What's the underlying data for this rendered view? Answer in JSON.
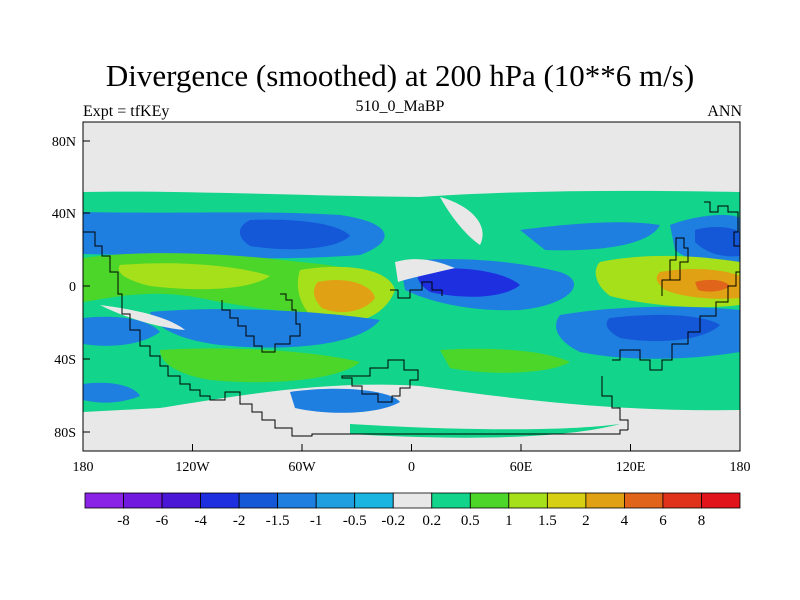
{
  "title": "Divergence (smoothed) at 200 hPa (10**6 m/s)",
  "left_label": "Expt = tfKEy",
  "center_label": "510_0_MaBP",
  "right_label": "ANN",
  "lat_ticks": [
    "80N",
    "40N",
    "0",
    "40S",
    "80S"
  ],
  "lon_ticks": [
    "180",
    "120W",
    "60W",
    "0",
    "60E",
    "120E",
    "180"
  ],
  "colorbar": {
    "labels": [
      "-8",
      "-6",
      "-4",
      "-2",
      "-1.5",
      "-1",
      "-0.5",
      "-0.2",
      "0.2",
      "0.5",
      "1",
      "1.5",
      "2",
      "4",
      "6",
      "8"
    ],
    "colors": [
      "#8b23e6",
      "#7219e0",
      "#4b17d6",
      "#1e2fe0",
      "#1458d8",
      "#1e7fe0",
      "#1f9fe0",
      "#1ab5e0",
      "#e8e8e8",
      "#12d48a",
      "#4cd62a",
      "#a6e01a",
      "#d6cf14",
      "#e0a214",
      "#e0641a",
      "#e0321a",
      "#e0141a"
    ]
  },
  "chart_data": {
    "type": "heatmap",
    "title": "Divergence (smoothed) at 200 hPa (10**6 m/s)",
    "lon_range": [
      -180,
      180
    ],
    "lat_range": [
      -90,
      90
    ],
    "levels": [
      -8,
      -6,
      -4,
      -2,
      -1.5,
      -1,
      -0.5,
      -0.2,
      0.2,
      0.5,
      1,
      1.5,
      2,
      4,
      6,
      8
    ],
    "regions": [
      {
        "lon": [
          -180,
          180
        ],
        "lat": [
          -90,
          90
        ],
        "value": 0
      },
      {
        "lon": [
          -180,
          180
        ],
        "lat": [
          -68,
          52
        ],
        "value": 0.6
      },
      {
        "lon": [
          -160,
          -90
        ],
        "lat": [
          18,
          38
        ],
        "value": -1
      },
      {
        "lon": [
          -30,
          30
        ],
        "lat": [
          22,
          42
        ],
        "value": -1.2
      },
      {
        "lon": [
          -55,
          5
        ],
        "lat": [
          -28,
          16
        ],
        "value": 2.5
      },
      {
        "lon": [
          -165,
          -105
        ],
        "lat": [
          -12,
          14
        ],
        "value": 1.5
      },
      {
        "lon": [
          0,
          70
        ],
        "lat": [
          -6,
          12
        ],
        "value": -4
      },
      {
        "lon": [
          130,
          175
        ],
        "lat": [
          -5,
          10
        ],
        "value": 3
      },
      {
        "lon": [
          140,
          180
        ],
        "lat": [
          15,
          38
        ],
        "value": -1.8
      },
      {
        "lon": [
          -120,
          -40
        ],
        "lat": [
          -55,
          -35
        ],
        "value": 1.5
      },
      {
        "lon": [
          90,
          175
        ],
        "lat": [
          -35,
          -15
        ],
        "value": -1.5
      },
      {
        "lon": [
          -60,
          0
        ],
        "lat": [
          -60,
          -42
        ],
        "value": -0.8
      }
    ]
  }
}
